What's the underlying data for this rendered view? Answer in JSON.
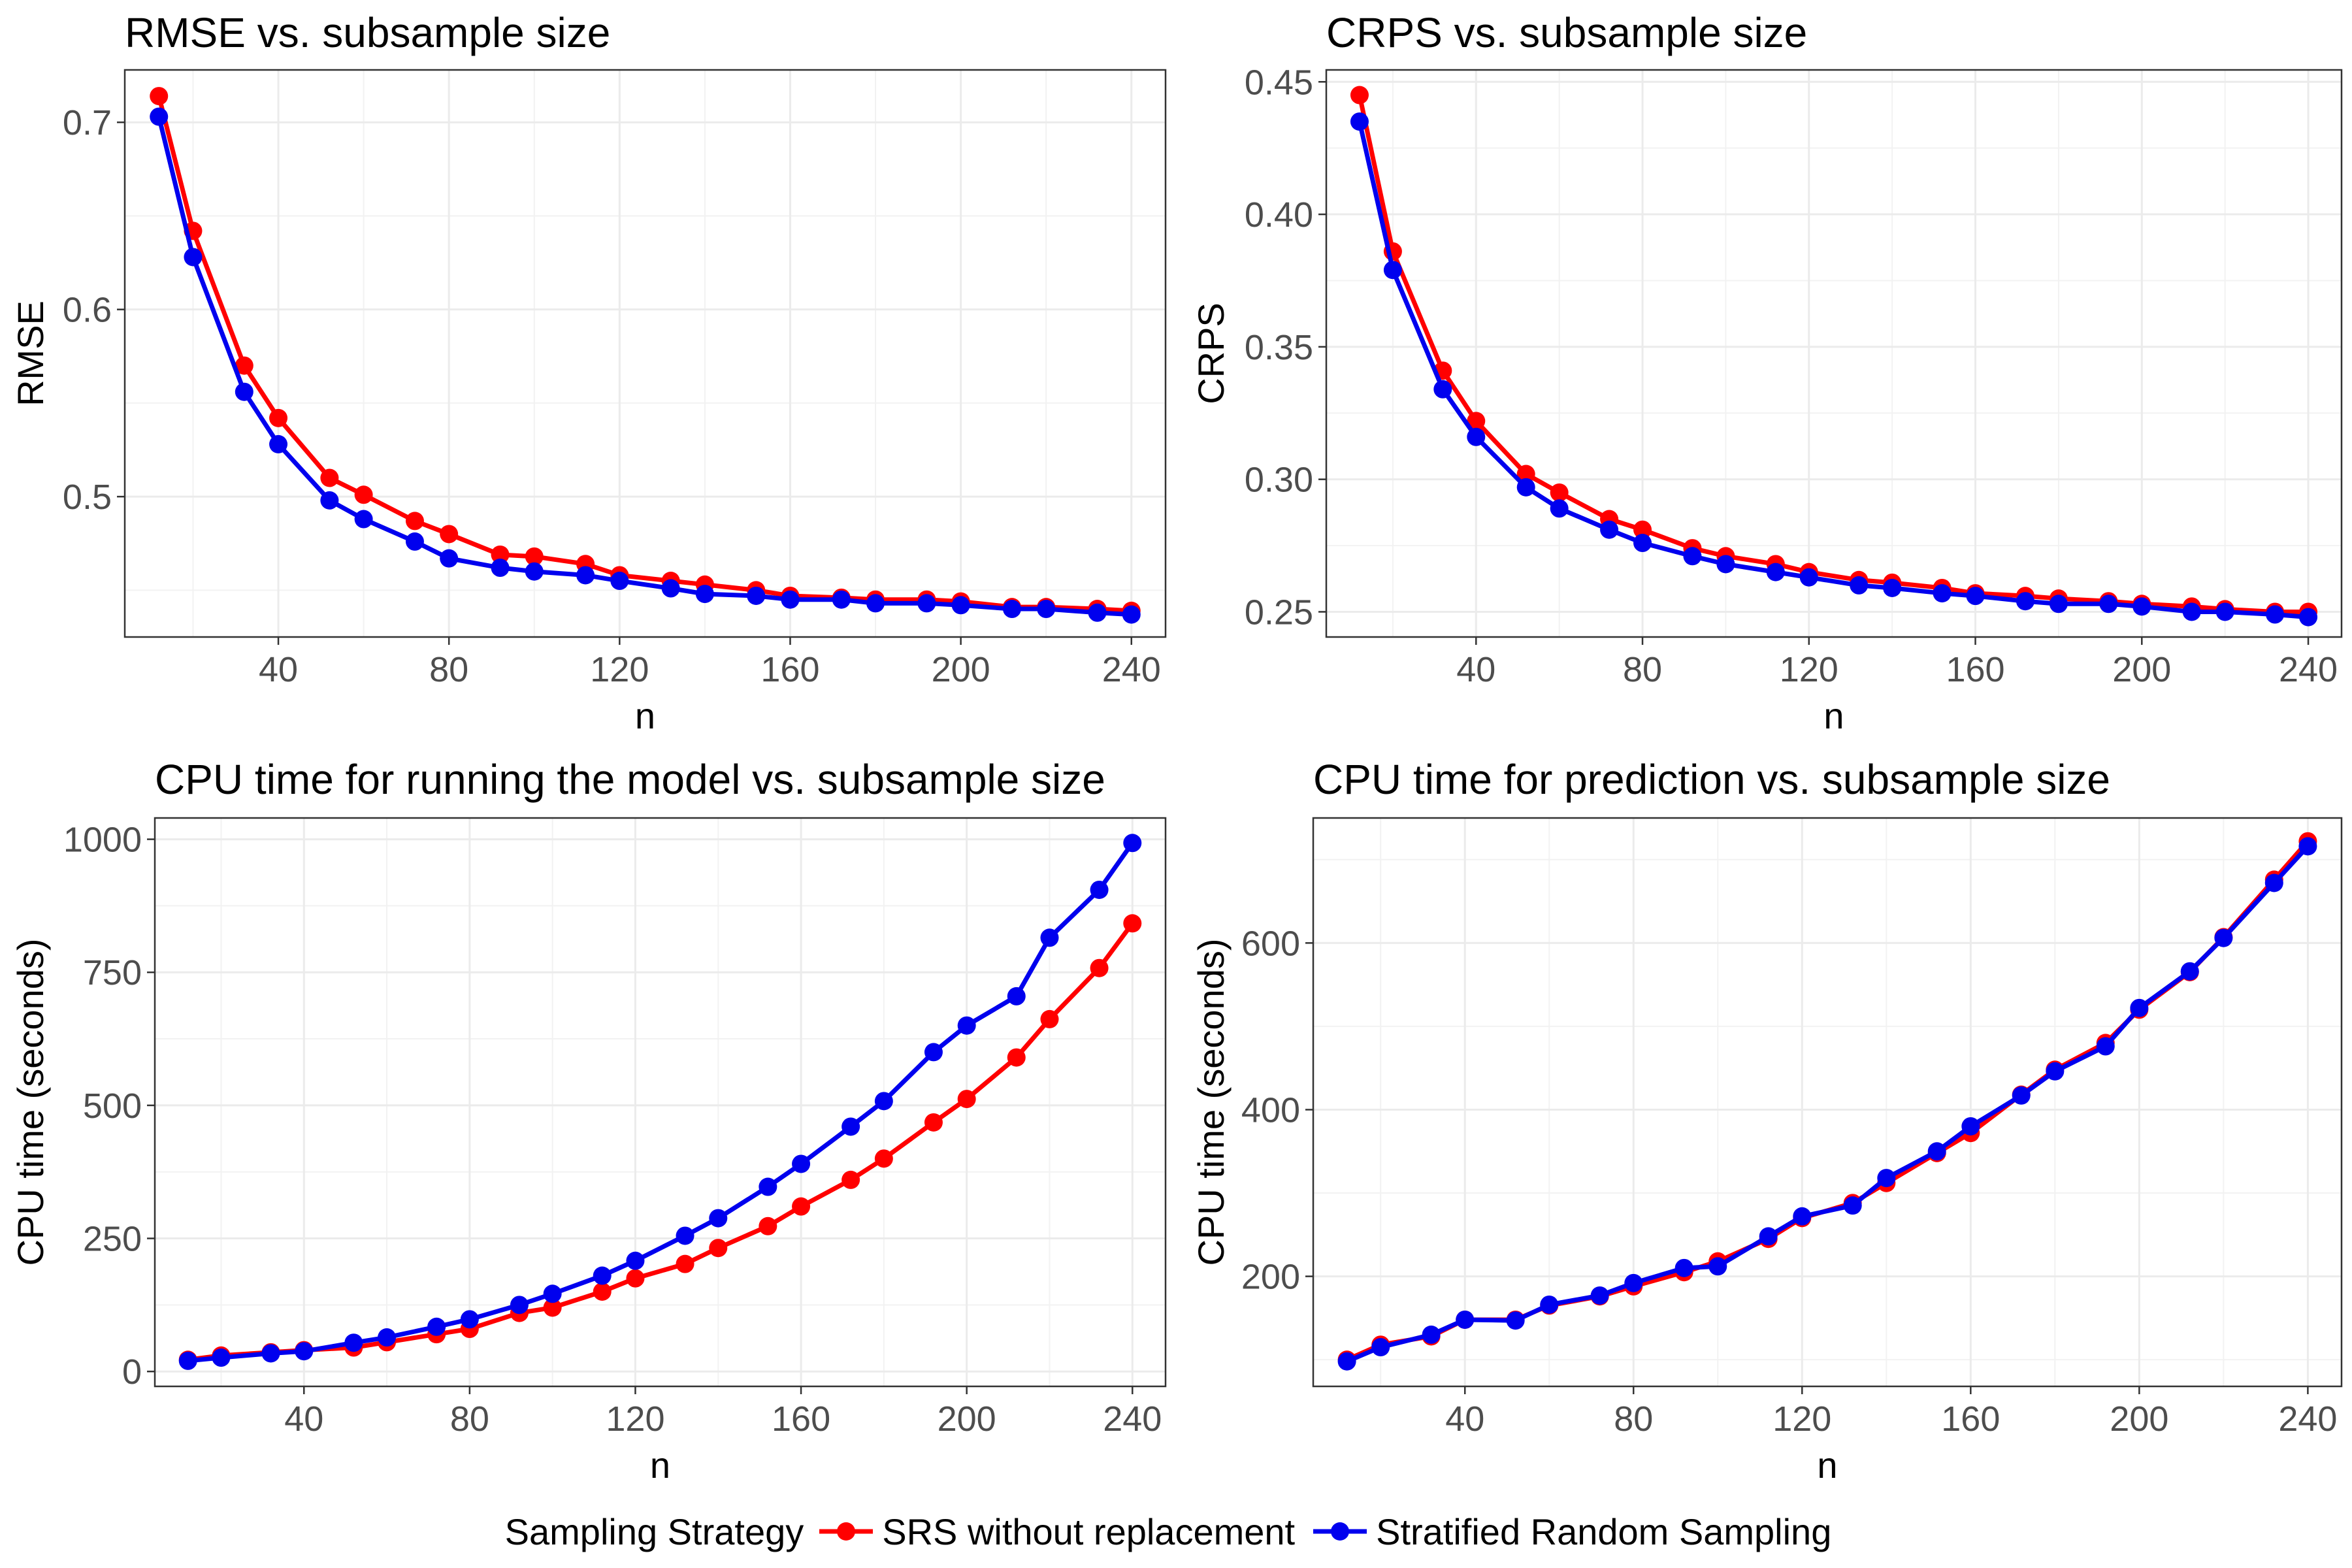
{
  "legend": {
    "title": "Sampling Strategy",
    "items": [
      {
        "label": "SRS without replacement",
        "color": "#ff0000"
      },
      {
        "label": "Stratified Random Sampling",
        "color": "#0000ee"
      }
    ]
  },
  "chart_data": [
    {
      "type": "line",
      "title": "RMSE vs. subsample size",
      "xlabel": "n",
      "ylabel": "RMSE",
      "xlim": [
        4,
        248
      ],
      "ylim": [
        0.425,
        0.728
      ],
      "xticks": [
        40,
        80,
        120,
        160,
        200,
        240
      ],
      "xtick_labels": [
        "40",
        "80",
        "120",
        "160",
        "200",
        "240"
      ],
      "yticks": [
        0.5,
        0.6,
        0.7
      ],
      "ytick_labels": [
        "0.5",
        "0.6",
        "0.7"
      ],
      "x": [
        12,
        20,
        32,
        40,
        52,
        60,
        72,
        80,
        92,
        100,
        112,
        120,
        132,
        140,
        152,
        160,
        172,
        180,
        192,
        200,
        212,
        220,
        232,
        240
      ],
      "series": [
        {
          "name": "SRS without replacement",
          "values": [
            0.714,
            0.642,
            0.57,
            0.542,
            0.51,
            0.501,
            0.487,
            0.48,
            0.469,
            0.468,
            0.464,
            0.458,
            0.455,
            0.453,
            0.45,
            0.447,
            0.446,
            0.445,
            0.445,
            0.444,
            0.441,
            0.441,
            0.44,
            0.439
          ]
        },
        {
          "name": "Stratified Random Sampling",
          "values": [
            0.703,
            0.628,
            0.556,
            0.528,
            0.498,
            0.488,
            0.476,
            0.467,
            0.462,
            0.46,
            0.458,
            0.455,
            0.451,
            0.448,
            0.447,
            0.445,
            0.445,
            0.443,
            0.443,
            0.442,
            0.44,
            0.44,
            0.438,
            0.437
          ]
        }
      ]
    },
    {
      "type": "line",
      "title": "CRPS vs. subsample size",
      "xlabel": "n",
      "ylabel": "CRPS",
      "xlim": [
        4,
        248
      ],
      "ylim": [
        0.2405,
        0.4545
      ],
      "xticks": [
        40,
        80,
        120,
        160,
        200,
        240
      ],
      "xtick_labels": [
        "40",
        "80",
        "120",
        "160",
        "200",
        "240"
      ],
      "yticks": [
        0.25,
        0.3,
        0.35,
        0.4,
        0.45
      ],
      "ytick_labels": [
        "0.25",
        "0.30",
        "0.35",
        "0.40",
        "0.45"
      ],
      "x": [
        12,
        20,
        32,
        40,
        52,
        60,
        72,
        80,
        92,
        100,
        112,
        120,
        132,
        140,
        152,
        160,
        172,
        180,
        192,
        200,
        212,
        220,
        232,
        240
      ],
      "series": [
        {
          "name": "SRS without replacement",
          "values": [
            0.445,
            0.386,
            0.341,
            0.322,
            0.302,
            0.295,
            0.285,
            0.281,
            0.274,
            0.271,
            0.268,
            0.265,
            0.262,
            0.261,
            0.259,
            0.257,
            0.256,
            0.255,
            0.254,
            0.253,
            0.252,
            0.251,
            0.25,
            0.25
          ]
        },
        {
          "name": "Stratified Random Sampling",
          "values": [
            0.435,
            0.379,
            0.334,
            0.316,
            0.297,
            0.289,
            0.281,
            0.276,
            0.271,
            0.268,
            0.265,
            0.263,
            0.26,
            0.259,
            0.257,
            0.256,
            0.254,
            0.253,
            0.253,
            0.252,
            0.25,
            0.25,
            0.249,
            0.248
          ]
        }
      ]
    },
    {
      "type": "line",
      "title": "CPU time for running the model vs. subsample size",
      "xlabel": "n",
      "ylabel": "CPU time (seconds)",
      "xlim": [
        4,
        248
      ],
      "ylim": [
        -28,
        1040
      ],
      "xticks": [
        40,
        80,
        120,
        160,
        200,
        240
      ],
      "xtick_labels": [
        "40",
        "80",
        "120",
        "160",
        "200",
        "240"
      ],
      "yticks": [
        0,
        250,
        500,
        750,
        1000
      ],
      "ytick_labels": [
        "0",
        "250",
        "500",
        "750",
        "1000"
      ],
      "x": [
        12,
        20,
        32,
        40,
        52,
        60,
        72,
        80,
        92,
        100,
        112,
        120,
        132,
        140,
        152,
        160,
        172,
        180,
        192,
        200,
        212,
        220,
        232,
        240
      ],
      "series": [
        {
          "name": "SRS without replacement",
          "values": [
            22,
            30,
            36,
            40,
            45,
            55,
            70,
            80,
            110,
            120,
            150,
            175,
            202,
            232,
            273,
            310,
            360,
            400,
            468,
            512,
            590,
            662,
            758,
            842
          ]
        },
        {
          "name": "Stratified Random Sampling",
          "values": [
            20,
            26,
            34,
            38,
            54,
            64,
            84,
            98,
            125,
            146,
            180,
            208,
            255,
            288,
            347,
            390,
            460,
            508,
            600,
            650,
            705,
            815,
            905,
            993
          ]
        }
      ]
    },
    {
      "type": "line",
      "title": "CPU time for prediction vs. subsample size",
      "xlabel": "n",
      "ylabel": "CPU time (seconds)",
      "xlim": [
        4,
        248
      ],
      "ylim": [
        68,
        750
      ],
      "xticks": [
        40,
        80,
        120,
        160,
        200,
        240
      ],
      "xtick_labels": [
        "40",
        "80",
        "120",
        "160",
        "200",
        "240"
      ],
      "yticks": [
        200,
        400,
        600
      ],
      "ytick_labels": [
        "200",
        "400",
        "600"
      ],
      "x": [
        12,
        20,
        32,
        40,
        52,
        60,
        72,
        80,
        92,
        100,
        112,
        120,
        132,
        140,
        152,
        160,
        172,
        180,
        192,
        200,
        212,
        220,
        232,
        240
      ],
      "series": [
        {
          "name": "SRS without replacement",
          "values": [
            100,
            118,
            128,
            148,
            148,
            165,
            176,
            188,
            205,
            218,
            245,
            270,
            288,
            312,
            348,
            372,
            418,
            448,
            480,
            520,
            565,
            607,
            676,
            722
          ]
        },
        {
          "name": "Stratified Random Sampling",
          "values": [
            98,
            115,
            130,
            148,
            147,
            166,
            177,
            192,
            210,
            212,
            248,
            272,
            285,
            318,
            350,
            380,
            417,
            446,
            476,
            522,
            566,
            606,
            672,
            716
          ]
        }
      ]
    }
  ]
}
